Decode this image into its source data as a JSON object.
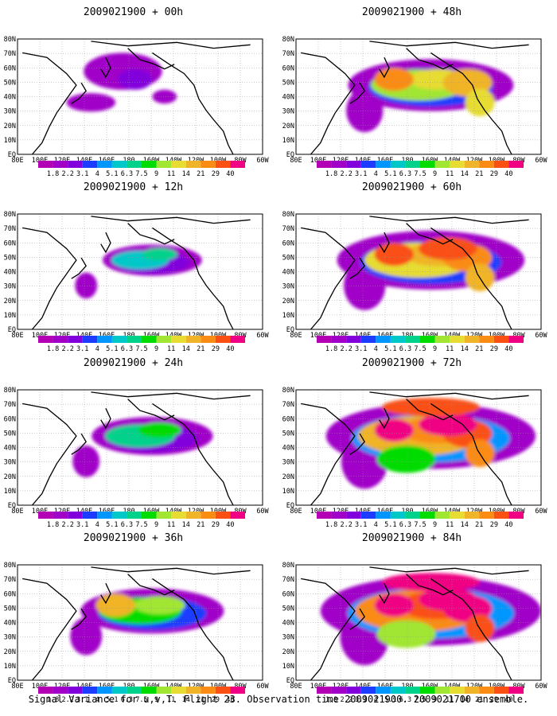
{
  "caption": "Signal Variance for u,v,T. Flight 23. Observation time 2009021900. 2009021700 ensemble.",
  "colorbar": {
    "labels": [
      "1.8",
      "2.2",
      "3.1",
      "4",
      "5.1",
      "6.3",
      "7.5",
      "9",
      "11",
      "14",
      "21",
      "29",
      "40"
    ],
    "colors": [
      "#a000c8",
      "#8200dc",
      "#1e3cff",
      "#0096ff",
      "#00c8c8",
      "#00d28c",
      "#00dc00",
      "#a0e632",
      "#e6dc32",
      "#f0b428",
      "#fa8c14",
      "#fa5014",
      "#f00082"
    ]
  },
  "axis": {
    "lat_labels": [
      "80N",
      "70N",
      "60N",
      "50N",
      "40N",
      "30N",
      "20N",
      "10N",
      "EQ"
    ],
    "lon_labels": [
      "80E",
      "100E",
      "120E",
      "140E",
      "160E",
      "180",
      "160W",
      "140W",
      "120W",
      "100W",
      "80W",
      "60W"
    ]
  },
  "panels": [
    {
      "title": "2009021900 + 00h",
      "intensity": 0
    },
    {
      "title": "2009021900 + 12h",
      "intensity": 1
    },
    {
      "title": "2009021900 + 24h",
      "intensity": 2
    },
    {
      "title": "2009021900 + 36h",
      "intensity": 3
    },
    {
      "title": "2009021900 + 48h",
      "intensity": 4
    },
    {
      "title": "2009021900 + 60h",
      "intensity": 5
    },
    {
      "title": "2009021900 + 72h",
      "intensity": 6
    },
    {
      "title": "2009021900 + 84h",
      "intensity": 7
    }
  ]
}
